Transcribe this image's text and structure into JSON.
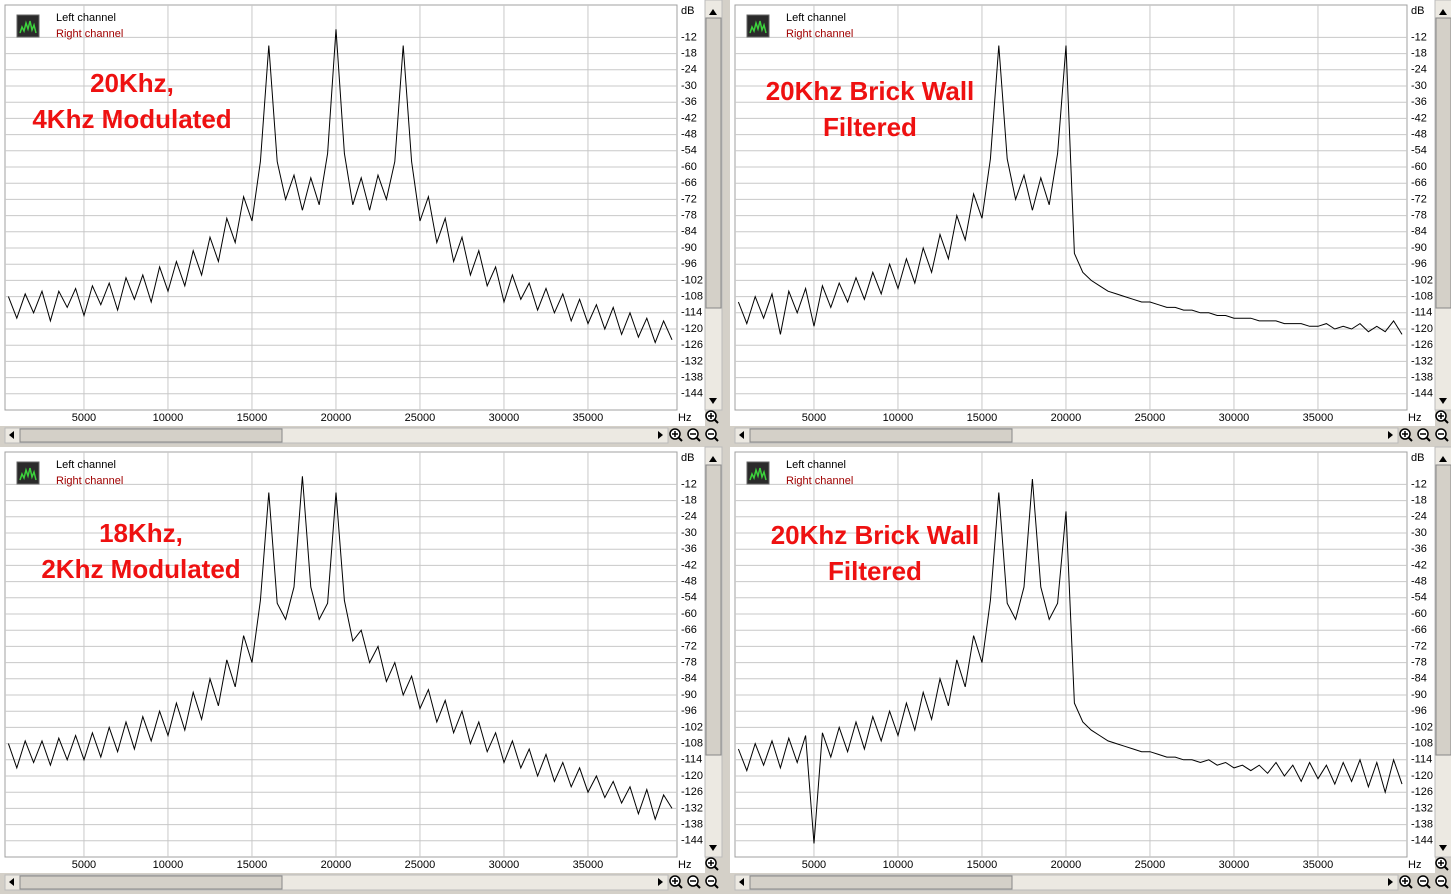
{
  "chart_data": [
    {
      "type": "line",
      "annotation": [
        "20Khz,",
        "4Khz Modulated"
      ],
      "annotation_color": "#ee1111",
      "legend": [
        {
          "name": "Left channel",
          "color": "#000000"
        },
        {
          "name": "Right channel",
          "color": "#a00000"
        }
      ],
      "x_label": "Hz",
      "y_label": "dB",
      "xlim": [
        300,
        40300
      ],
      "ylim": [
        -150,
        0
      ],
      "xticks": [
        5000,
        10000,
        15000,
        20000,
        25000,
        30000,
        35000
      ],
      "yticks": [
        -12,
        -18,
        -24,
        -30,
        -36,
        -42,
        -48,
        -54,
        -60,
        -66,
        -72,
        -78,
        -84,
        -90,
        -96,
        -102,
        -108,
        -114,
        -120,
        -126,
        -132,
        -138,
        -144
      ],
      "grid": true,
      "color": "#000000",
      "x": [
        500,
        1000,
        1500,
        2000,
        2500,
        3000,
        3500,
        4000,
        4500,
        5000,
        5500,
        6000,
        6500,
        7000,
        7500,
        8000,
        8500,
        9000,
        9500,
        10000,
        10500,
        11000,
        11500,
        12000,
        12500,
        13000,
        13500,
        14000,
        14500,
        15000,
        15500,
        16000,
        16500,
        17000,
        17500,
        18000,
        18500,
        19000,
        19500,
        20000,
        20500,
        21000,
        21500,
        22000,
        22500,
        23000,
        23500,
        24000,
        24500,
        25000,
        25500,
        26000,
        26500,
        27000,
        27500,
        28000,
        28500,
        29000,
        29500,
        30000,
        30500,
        31000,
        31500,
        32000,
        32500,
        33000,
        33500,
        34000,
        34500,
        35000,
        35500,
        36000,
        36500,
        37000,
        37500,
        38000,
        38500,
        39000,
        39500,
        40000
      ],
      "values": [
        -108,
        -116,
        -107,
        -114,
        -106,
        -117,
        -106,
        -112,
        -105,
        -115,
        -104,
        -111,
        -103,
        -113,
        -101,
        -109,
        -100,
        -110,
        -97,
        -106,
        -95,
        -104,
        -91,
        -100,
        -86,
        -95,
        -79,
        -88,
        -71,
        -80,
        -58,
        -15,
        -58,
        -72,
        -63,
        -76,
        -64,
        -74,
        -55,
        -9,
        -55,
        -74,
        -64,
        -76,
        -63,
        -72,
        -58,
        -15,
        -58,
        -80,
        -71,
        -88,
        -79,
        -95,
        -86,
        -100,
        -91,
        -104,
        -97,
        -110,
        -100,
        -109,
        -103,
        -113,
        -105,
        -114,
        -107,
        -117,
        -109,
        -118,
        -111,
        -120,
        -112,
        -122,
        -114,
        -123,
        -116,
        -125,
        -117,
        -124
      ]
    },
    {
      "type": "line",
      "annotation": [
        "20Khz Brick Wall",
        "Filtered"
      ],
      "annotation_color": "#ee1111",
      "legend": [
        {
          "name": "Left channel",
          "color": "#000000"
        },
        {
          "name": "Right channel",
          "color": "#a00000"
        }
      ],
      "x_label": "Hz",
      "y_label": "dB",
      "xlim": [
        300,
        40300
      ],
      "ylim": [
        -150,
        0
      ],
      "xticks": [
        5000,
        10000,
        15000,
        20000,
        25000,
        30000,
        35000
      ],
      "yticks": [
        -12,
        -18,
        -24,
        -30,
        -36,
        -42,
        -48,
        -54,
        -60,
        -66,
        -72,
        -78,
        -84,
        -90,
        -96,
        -102,
        -108,
        -114,
        -120,
        -126,
        -132,
        -138,
        -144
      ],
      "grid": true,
      "color": "#000000",
      "x": [
        500,
        1000,
        1500,
        2000,
        2500,
        3000,
        3500,
        4000,
        4500,
        5000,
        5500,
        6000,
        6500,
        7000,
        7500,
        8000,
        8500,
        9000,
        9500,
        10000,
        10500,
        11000,
        11500,
        12000,
        12500,
        13000,
        13500,
        14000,
        14500,
        15000,
        15500,
        16000,
        16500,
        17000,
        17500,
        18000,
        18500,
        19000,
        19500,
        20000,
        20500,
        21000,
        21500,
        22000,
        22500,
        23000,
        23500,
        24000,
        24500,
        25000,
        25500,
        26000,
        26500,
        27000,
        27500,
        28000,
        28500,
        29000,
        29500,
        30000,
        30500,
        31000,
        31500,
        32000,
        32500,
        33000,
        33500,
        34000,
        34500,
        35000,
        35500,
        36000,
        36500,
        37000,
        37500,
        38000,
        38500,
        39000,
        39500,
        40000
      ],
      "values": [
        -110,
        -118,
        -108,
        -116,
        -107,
        -122,
        -106,
        -114,
        -105,
        -119,
        -104,
        -112,
        -103,
        -110,
        -101,
        -109,
        -99,
        -107,
        -96,
        -105,
        -94,
        -103,
        -90,
        -99,
        -85,
        -94,
        -78,
        -87,
        -70,
        -79,
        -57,
        -15,
        -57,
        -72,
        -63,
        -76,
        -64,
        -74,
        -55,
        -15,
        -92,
        -99,
        -102,
        -104,
        -106,
        -107,
        -108,
        -109,
        -110,
        -110,
        -111,
        -112,
        -112,
        -113,
        -113,
        -114,
        -114,
        -115,
        -115,
        -116,
        -116,
        -116,
        -117,
        -117,
        -117,
        -118,
        -118,
        -118,
        -119,
        -119,
        -118,
        -120,
        -119,
        -120,
        -118,
        -121,
        -119,
        -121,
        -117,
        -122
      ]
    },
    {
      "type": "line",
      "annotation": [
        "18Khz,",
        "2Khz Modulated"
      ],
      "annotation_color": "#ee1111",
      "legend": [
        {
          "name": "Left channel",
          "color": "#000000"
        },
        {
          "name": "Right channel",
          "color": "#a00000"
        }
      ],
      "x_label": "Hz",
      "y_label": "dB",
      "xlim": [
        300,
        40300
      ],
      "ylim": [
        -150,
        0
      ],
      "xticks": [
        5000,
        10000,
        15000,
        20000,
        25000,
        30000,
        35000
      ],
      "yticks": [
        -12,
        -18,
        -24,
        -30,
        -36,
        -42,
        -48,
        -54,
        -60,
        -66,
        -72,
        -78,
        -84,
        -90,
        -96,
        -102,
        -108,
        -114,
        -120,
        -126,
        -132,
        -138,
        -144
      ],
      "grid": true,
      "color": "#000000",
      "x": [
        500,
        1000,
        1500,
        2000,
        2500,
        3000,
        3500,
        4000,
        4500,
        5000,
        5500,
        6000,
        6500,
        7000,
        7500,
        8000,
        8500,
        9000,
        9500,
        10000,
        10500,
        11000,
        11500,
        12000,
        12500,
        13000,
        13500,
        14000,
        14500,
        15000,
        15500,
        16000,
        16500,
        17000,
        17500,
        18000,
        18500,
        19000,
        19500,
        20000,
        20500,
        21000,
        21500,
        22000,
        22500,
        23000,
        23500,
        24000,
        24500,
        25000,
        25500,
        26000,
        26500,
        27000,
        27500,
        28000,
        28500,
        29000,
        29500,
        30000,
        30500,
        31000,
        31500,
        32000,
        32500,
        33000,
        33500,
        34000,
        34500,
        35000,
        35500,
        36000,
        36500,
        37000,
        37500,
        38000,
        38500,
        39000,
        39500,
        40000
      ],
      "values": [
        -108,
        -117,
        -107,
        -115,
        -107,
        -116,
        -106,
        -114,
        -105,
        -114,
        -104,
        -113,
        -102,
        -111,
        -100,
        -110,
        -98,
        -107,
        -96,
        -105,
        -93,
        -103,
        -89,
        -99,
        -84,
        -94,
        -77,
        -87,
        -68,
        -78,
        -55,
        -15,
        -56,
        -62,
        -50,
        -9,
        -50,
        -62,
        -56,
        -15,
        -55,
        -70,
        -66,
        -78,
        -72,
        -85,
        -78,
        -90,
        -83,
        -95,
        -88,
        -100,
        -92,
        -104,
        -96,
        -108,
        -100,
        -111,
        -104,
        -115,
        -107,
        -117,
        -110,
        -120,
        -112,
        -122,
        -115,
        -124,
        -117,
        -126,
        -120,
        -128,
        -122,
        -130,
        -124,
        -134,
        -125,
        -136,
        -127,
        -132
      ]
    },
    {
      "type": "line",
      "annotation": [
        "20Khz Brick Wall",
        "Filtered"
      ],
      "annotation_color": "#ee1111",
      "legend": [
        {
          "name": "Left channel",
          "color": "#000000"
        },
        {
          "name": "Right channel",
          "color": "#a00000"
        }
      ],
      "x_label": "Hz",
      "y_label": "dB",
      "xlim": [
        300,
        40300
      ],
      "ylim": [
        -150,
        0
      ],
      "xticks": [
        5000,
        10000,
        15000,
        20000,
        25000,
        30000,
        35000
      ],
      "yticks": [
        -12,
        -18,
        -24,
        -30,
        -36,
        -42,
        -48,
        -54,
        -60,
        -66,
        -72,
        -78,
        -84,
        -90,
        -96,
        -102,
        -108,
        -114,
        -120,
        -126,
        -132,
        -138,
        -144
      ],
      "grid": true,
      "color": "#000000",
      "x": [
        500,
        1000,
        1500,
        2000,
        2500,
        3000,
        3500,
        4000,
        4500,
        5000,
        5500,
        6000,
        6500,
        7000,
        7500,
        8000,
        8500,
        9000,
        9500,
        10000,
        10500,
        11000,
        11500,
        12000,
        12500,
        13000,
        13500,
        14000,
        14500,
        15000,
        15500,
        16000,
        16500,
        17000,
        17500,
        18000,
        18500,
        19000,
        19500,
        20000,
        20500,
        21000,
        21500,
        22000,
        22500,
        23000,
        23500,
        24000,
        24500,
        25000,
        25500,
        26000,
        26500,
        27000,
        27500,
        28000,
        28500,
        29000,
        29500,
        30000,
        30500,
        31000,
        31500,
        32000,
        32500,
        33000,
        33500,
        34000,
        34500,
        35000,
        35500,
        36000,
        36500,
        37000,
        37500,
        38000,
        38500,
        39000,
        39500,
        40000
      ],
      "values": [
        -110,
        -118,
        -108,
        -116,
        -107,
        -117,
        -106,
        -115,
        -105,
        -145,
        -104,
        -113,
        -102,
        -111,
        -100,
        -110,
        -98,
        -107,
        -96,
        -105,
        -93,
        -103,
        -89,
        -99,
        -84,
        -94,
        -77,
        -87,
        -68,
        -78,
        -55,
        -15,
        -56,
        -62,
        -50,
        -10,
        -50,
        -62,
        -56,
        -22,
        -93,
        -100,
        -103,
        -105,
        -107,
        -108,
        -109,
        -110,
        -111,
        -111,
        -112,
        -113,
        -113,
        -114,
        -114,
        -115,
        -114,
        -116,
        -115,
        -117,
        -116,
        -118,
        -116,
        -119,
        -115,
        -120,
        -116,
        -122,
        -115,
        -121,
        -116,
        -123,
        -115,
        -122,
        -114,
        -124,
        -115,
        -126,
        -114,
        -123
      ]
    }
  ]
}
